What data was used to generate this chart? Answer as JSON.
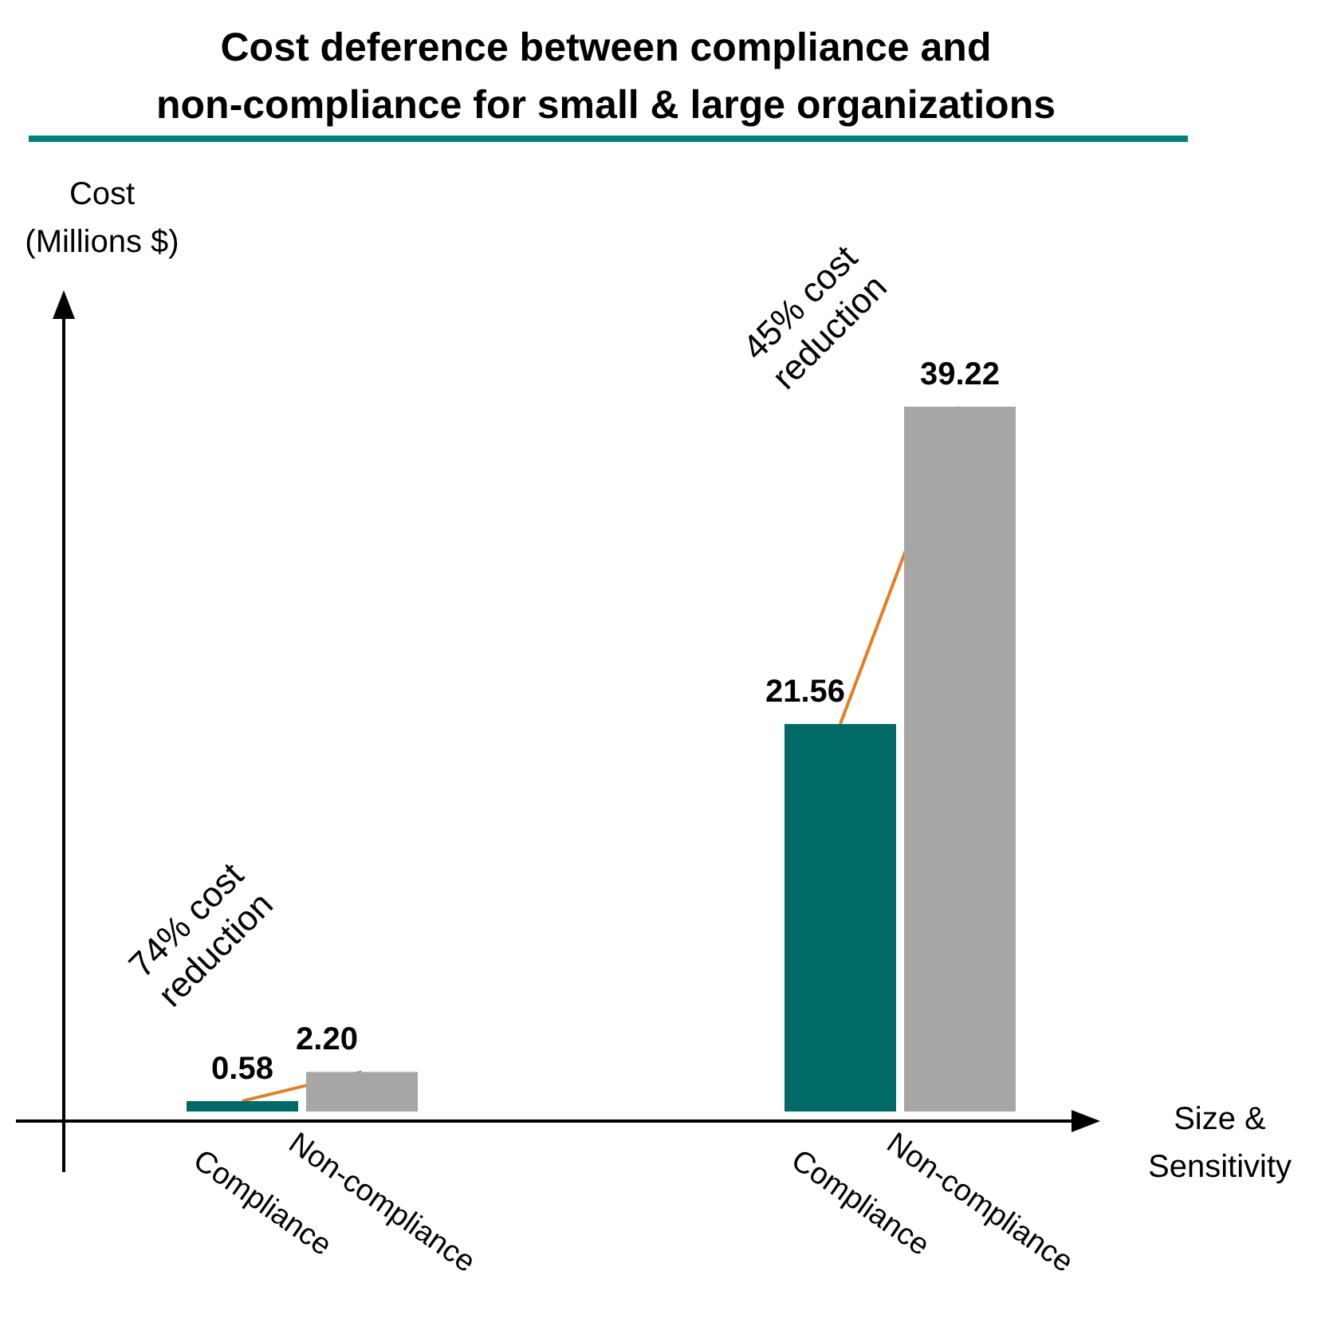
{
  "chart_data": {
    "type": "bar",
    "title": "Cost deference between compliance and\nnon-compliance for small & large organizations",
    "ylabel": "Cost\n(Millions $)",
    "categories": [
      "Compliance",
      "Non-compliance",
      null,
      null,
      null,
      "Compliance",
      "Non-compliance"
    ],
    "values": [
      0.58,
      2.2,
      null,
      null,
      null,
      21.56,
      39.22
    ],
    "value_labels": [
      "0.58",
      "2.20",
      null,
      null,
      null,
      "21.56",
      "39.22"
    ],
    "colors": [
      "#006a66",
      "#a6a6a6",
      null,
      null,
      null,
      "#006a66",
      "#a6a6a6"
    ],
    "annotations": [
      "74% cost\nreduction",
      "45% cost\nreduction",
      "Size &\nSensitivity"
    ]
  }
}
